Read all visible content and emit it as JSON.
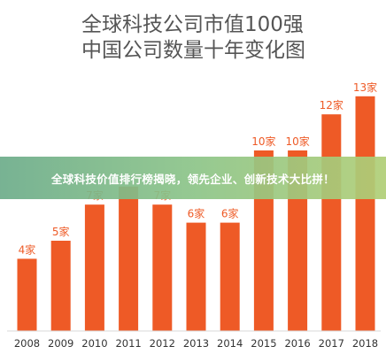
{
  "banner": {
    "text": "全球科技价值排行榜揭晓，领先企业、创新技术大比拼！"
  },
  "chart_data": {
    "type": "bar",
    "title": [
      "全球科技公司市值100强",
      "中国公司数量十年变化图"
    ],
    "xlabel": "",
    "ylabel": "",
    "categories": [
      "2008",
      "2009",
      "2010",
      "2011",
      "2012",
      "2013",
      "2014",
      "2015",
      "2016",
      "2017",
      "2018"
    ],
    "values": [
      4,
      5,
      7,
      8,
      7,
      6,
      6,
      10,
      10,
      12,
      13
    ],
    "data_labels": [
      "4家",
      "5家",
      "7家",
      "",
      "7家",
      "6家",
      "6家",
      "10家",
      "10家",
      "12家",
      "13家"
    ],
    "bar_color": "#ee5a26",
    "ylim": [
      0,
      13
    ],
    "grid": false,
    "legend": "none"
  }
}
